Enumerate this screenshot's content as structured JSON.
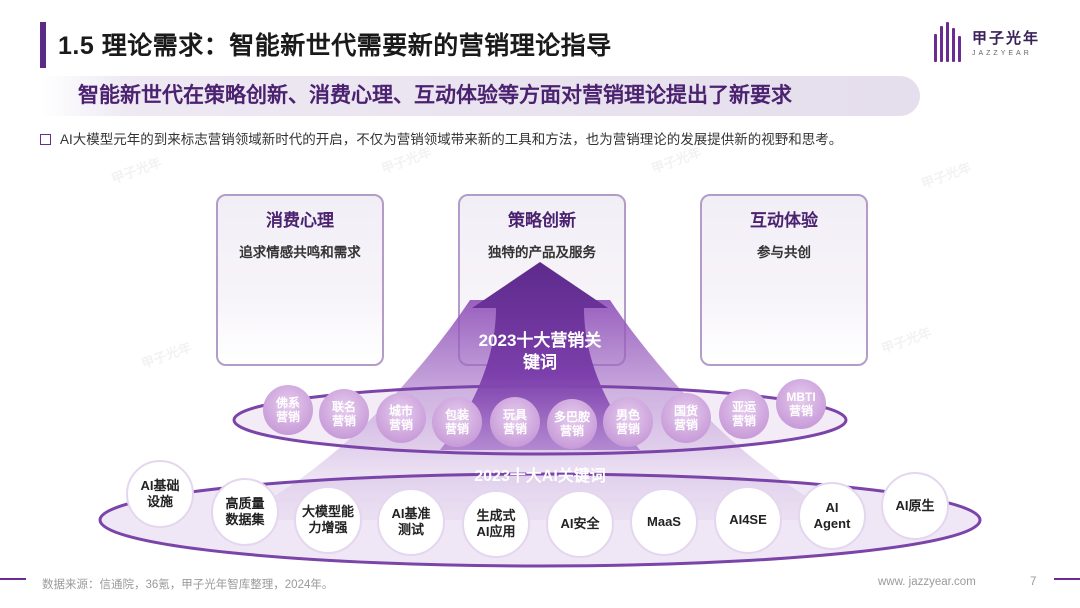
{
  "header": {
    "title": "1.5 理论需求：智能新世代需要新的营销理论指导",
    "subtitle": "智能新世代在策略创新、消费心理、互动体验等方面对营销理论提出了新要求",
    "bullet": "AI大模型元年的到来标志营销领域新时代的开启，不仅为营销领域带来新的工具和方法，也为营销理论的发展提供新的视野和思考。"
  },
  "logo": {
    "cn": "甲子光年",
    "en": "JAZZYEAR"
  },
  "cards": [
    {
      "title": "消费心理",
      "desc": "追求情感共鸣和需求"
    },
    {
      "title": "策略创新",
      "desc": "独特的产品及服务"
    },
    {
      "title": "互动体验",
      "desc": "参与共创"
    }
  ],
  "arrow_label": "2023十大营销关键词",
  "marketing_keywords": [
    [
      "佛系",
      "营销"
    ],
    [
      "联名",
      "营销"
    ],
    [
      "城市",
      "营销"
    ],
    [
      "包装",
      "营销"
    ],
    [
      "玩具",
      "营销"
    ],
    [
      "多巴胺",
      "营销"
    ],
    [
      "男色",
      "营销"
    ],
    [
      "国货",
      "营销"
    ],
    [
      "亚运",
      "营销"
    ],
    [
      "MBTI",
      "营销"
    ]
  ],
  "ai_title": "2023十大AI关键词",
  "ai_keywords": [
    [
      "AI基础",
      "设施"
    ],
    [
      "高质量",
      "数据集"
    ],
    [
      "大模型能",
      "力增强"
    ],
    [
      "AI基准",
      "测试"
    ],
    [
      "生成式",
      "AI应用"
    ],
    [
      "AI安全"
    ],
    [
      "MaaS"
    ],
    [
      "AI4SE"
    ],
    [
      "AI",
      "Agent"
    ],
    [
      "AI原生"
    ]
  ],
  "colors": {
    "accent": "#6a2c91",
    "title_bar": "#5b2a86",
    "bubble": "#d9b8e4",
    "white_circle": "#ffffff"
  },
  "footer": {
    "source": "数据来源：信通院，36氪，甲子光年智库整理，2024年。",
    "site": "www. jazzyear.com",
    "page": "7"
  }
}
